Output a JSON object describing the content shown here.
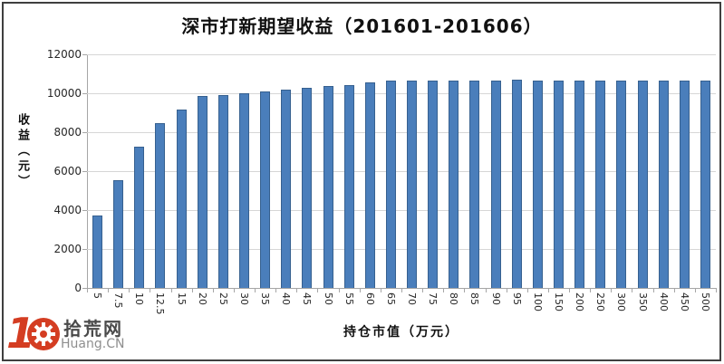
{
  "title": "深市打新期望收益（201601-201606）",
  "chart_data": {
    "type": "bar",
    "title": "深市打新期望收益（201601-201606）",
    "xlabel": "持仓市值（万元）",
    "ylabel": "收益（元）",
    "ylim": [
      0,
      12000
    ],
    "yticks": [
      0,
      2000,
      4000,
      6000,
      8000,
      10000,
      12000
    ],
    "grid": true,
    "legend_position": "none",
    "bar_color": "#4a7ebb",
    "bar_border_color": "#36608f",
    "categories": [
      "5",
      "7.5",
      "10",
      "12.5",
      "15",
      "20",
      "25",
      "30",
      "35",
      "40",
      "45",
      "50",
      "55",
      "60",
      "65",
      "70",
      "75",
      "80",
      "85",
      "90",
      "95",
      "100",
      "150",
      "200",
      "250",
      "300",
      "350",
      "400",
      "450",
      "500"
    ],
    "values": [
      3700,
      5550,
      7250,
      8450,
      9150,
      9850,
      9900,
      10000,
      10100,
      10200,
      10300,
      10350,
      10420,
      10550,
      10650,
      10660,
      10650,
      10660,
      10660,
      10670,
      10680,
      10660,
      10660,
      10650,
      10660,
      10670,
      10660,
      10660,
      10650,
      10640
    ]
  },
  "watermark": {
    "number": "1",
    "gear_icon": "gear-icon",
    "site_name": "拾荒网",
    "site_url": "Huang.CN",
    "accent_color": "#d43d22"
  }
}
